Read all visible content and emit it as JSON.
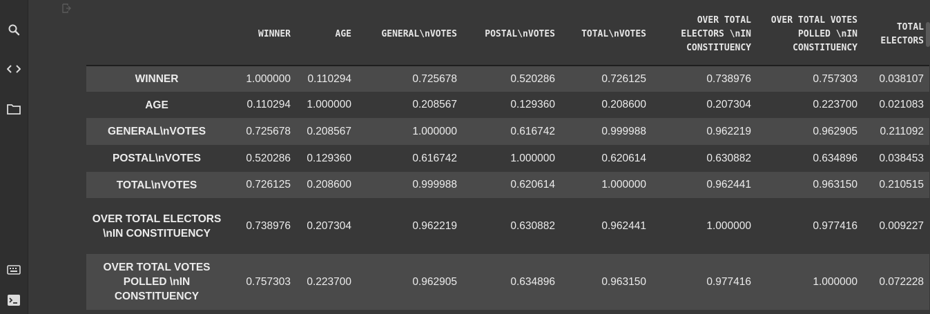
{
  "sidebar": {
    "icons": [
      "search-icon",
      "code-icon",
      "folder-icon",
      "keyboard-icon",
      "terminal-icon"
    ]
  },
  "colors": {
    "background": "#383838",
    "row_stripe": "#4a4a4a",
    "sidebar": "#2f2f2f",
    "text": "#e8e8e8"
  },
  "table": {
    "columns": [
      "WINNER",
      "AGE",
      "GENERAL\\nVOTES",
      "POSTAL\\nVOTES",
      "TOTAL\\nVOTES",
      "OVER TOTAL ELECTORS \\nIN CONSTITUENCY",
      "OVER TOTAL VOTES POLLED \\nIN CONSTITUENCY",
      "TOTAL ELECTORS"
    ],
    "rows": [
      {
        "label": "WINNER",
        "values": [
          "1.000000",
          "0.110294",
          "0.725678",
          "0.520286",
          "0.726125",
          "0.738976",
          "0.757303",
          "0.038107"
        ]
      },
      {
        "label": "AGE",
        "values": [
          "0.110294",
          "1.000000",
          "0.208567",
          "0.129360",
          "0.208600",
          "0.207304",
          "0.223700",
          "0.021083"
        ]
      },
      {
        "label": "GENERAL\\nVOTES",
        "values": [
          "0.725678",
          "0.208567",
          "1.000000",
          "0.616742",
          "0.999988",
          "0.962219",
          "0.962905",
          "0.211092"
        ]
      },
      {
        "label": "POSTAL\\nVOTES",
        "values": [
          "0.520286",
          "0.129360",
          "0.616742",
          "1.000000",
          "0.620614",
          "0.630882",
          "0.634896",
          "0.038453"
        ]
      },
      {
        "label": "TOTAL\\nVOTES",
        "values": [
          "0.726125",
          "0.208600",
          "0.999988",
          "0.620614",
          "1.000000",
          "0.962441",
          "0.963150",
          "0.210515"
        ]
      },
      {
        "label": "OVER TOTAL ELECTORS \\nIN CONSTITUENCY",
        "values": [
          "0.738976",
          "0.207304",
          "0.962219",
          "0.630882",
          "0.962441",
          "1.000000",
          "0.977416",
          "0.009227"
        ]
      },
      {
        "label": "OVER TOTAL VOTES POLLED \\nIN CONSTITUENCY",
        "values": [
          "0.757303",
          "0.223700",
          "0.962905",
          "0.634896",
          "0.963150",
          "0.977416",
          "1.000000",
          "0.072228"
        ]
      }
    ]
  }
}
